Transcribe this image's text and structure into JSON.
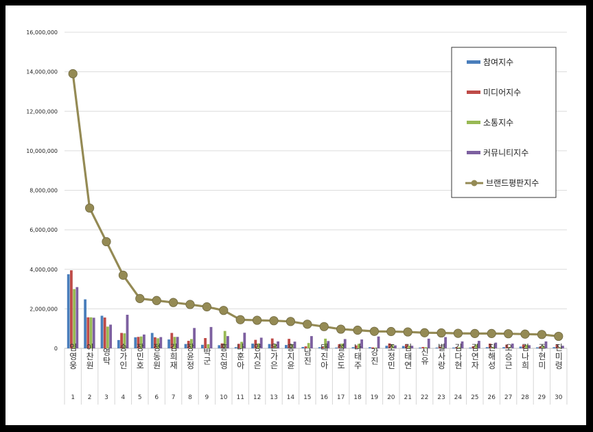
{
  "chart_data": {
    "type": "bar",
    "yticks": [
      "0",
      "2,000,000",
      "4,000,000",
      "6,000,000",
      "8,000,000",
      "10,000,000",
      "12,000,000",
      "14,000,000",
      "16,000,000"
    ],
    "ylim": [
      0,
      16000000
    ],
    "grid": true,
    "legend_position": "top-right",
    "categories": [
      "임영웅",
      "이찬원",
      "영탁",
      "송가인",
      "장민호",
      "정동원",
      "김희재",
      "장윤정",
      "박군",
      "홍진영",
      "나훈아",
      "양지은",
      "은가은",
      "홍지윤",
      "남진",
      "태진아",
      "설운도",
      "나태주",
      "강진",
      "조정민",
      "김태연",
      "신유",
      "별사랑",
      "김다현",
      "김연자",
      "진해성",
      "오승근",
      "김나희",
      "주현미",
      "진미령"
    ],
    "indices": [
      "1",
      "2",
      "3",
      "4",
      "5",
      "6",
      "7",
      "8",
      "9",
      "10",
      "11",
      "12",
      "13",
      "14",
      "15",
      "16",
      "17",
      "18",
      "19",
      "20",
      "21",
      "22",
      "23",
      "24",
      "25",
      "26",
      "27",
      "28",
      "29",
      "30"
    ],
    "series": [
      {
        "name": "참여지수",
        "color": "#4a7ebb",
        "kind": "bar",
        "values": [
          3750000,
          2480000,
          1650000,
          420000,
          560000,
          780000,
          450000,
          220000,
          180000,
          160000,
          60000,
          240000,
          220000,
          170000,
          70000,
          60000,
          40000,
          60000,
          60000,
          130000,
          120000,
          40000,
          40000,
          40000,
          40000,
          60000,
          60000,
          90000,
          50000,
          60000
        ]
      },
      {
        "name": "미디어지수",
        "color": "#be4b48",
        "kind": "bar",
        "values": [
          3950000,
          1570000,
          1560000,
          780000,
          580000,
          560000,
          780000,
          380000,
          520000,
          250000,
          230000,
          430000,
          500000,
          480000,
          100000,
          80000,
          210000,
          150000,
          50000,
          250000,
          200000,
          70000,
          100000,
          50000,
          110000,
          240000,
          190000,
          180000,
          90000,
          190000
        ]
      },
      {
        "name": "소통지수",
        "color": "#98b954",
        "kind": "bar",
        "values": [
          3000000,
          1570000,
          1100000,
          760000,
          600000,
          510000,
          580000,
          470000,
          210000,
          880000,
          330000,
          250000,
          220000,
          190000,
          270000,
          490000,
          240000,
          230000,
          40000,
          190000,
          130000,
          60000,
          50000,
          60000,
          200000,
          70000,
          70000,
          180000,
          140000,
          50000
        ]
      },
      {
        "name": "커뮤니티지수",
        "color": "#7d60a0",
        "kind": "bar",
        "values": [
          3100000,
          1550000,
          1200000,
          1700000,
          700000,
          570000,
          580000,
          1030000,
          1080000,
          620000,
          790000,
          540000,
          350000,
          340000,
          620000,
          370000,
          470000,
          450000,
          600000,
          150000,
          130000,
          490000,
          570000,
          350000,
          380000,
          290000,
          240000,
          160000,
          350000,
          130000
        ]
      },
      {
        "name": "브랜드평판지수",
        "color": "#948a54",
        "kind": "line",
        "values": [
          13900000,
          7100000,
          5400000,
          3700000,
          2520000,
          2420000,
          2320000,
          2220000,
          2100000,
          1920000,
          1450000,
          1420000,
          1400000,
          1360000,
          1220000,
          1100000,
          970000,
          920000,
          860000,
          850000,
          830000,
          790000,
          780000,
          760000,
          750000,
          750000,
          740000,
          720000,
          700000,
          610000
        ]
      }
    ]
  }
}
